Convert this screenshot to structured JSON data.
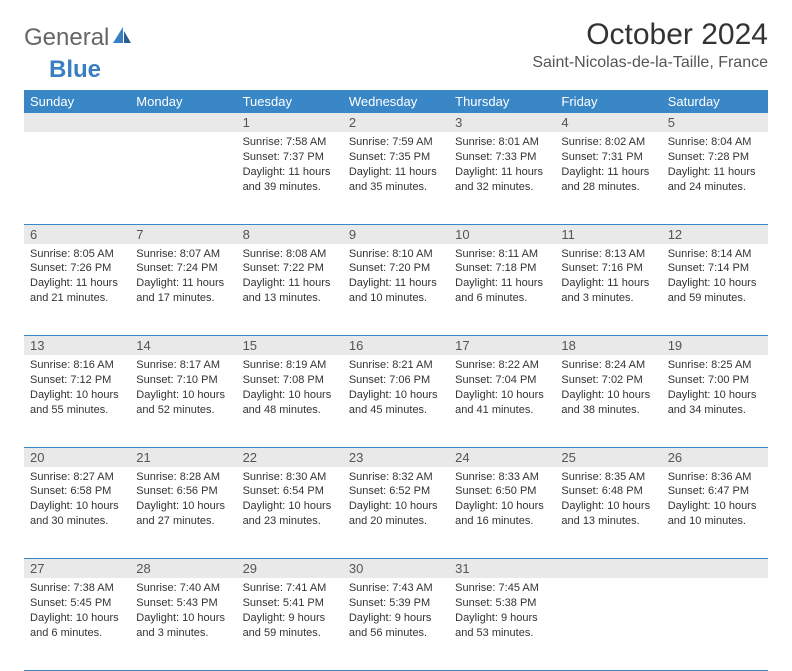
{
  "header": {
    "logo_part1": "General",
    "logo_part2": "Blue",
    "month_title": "October 2024",
    "location": "Saint-Nicolas-de-la-Taille, France"
  },
  "styling": {
    "header_bg": "#3a87c7",
    "header_fg": "#ffffff",
    "daynum_bg": "#e9e9e9",
    "row_divider": "#3a87c7",
    "text_color": "#333333",
    "details_fontsize": 11,
    "header_fontsize": 13,
    "title_fontsize": 30,
    "location_fontsize": 16
  },
  "day_labels": [
    "Sunday",
    "Monday",
    "Tuesday",
    "Wednesday",
    "Thursday",
    "Friday",
    "Saturday"
  ],
  "weeks": [
    [
      null,
      null,
      {
        "n": "1",
        "sunrise": "7:58 AM",
        "sunset": "7:37 PM",
        "daylight": "11 hours and 39 minutes."
      },
      {
        "n": "2",
        "sunrise": "7:59 AM",
        "sunset": "7:35 PM",
        "daylight": "11 hours and 35 minutes."
      },
      {
        "n": "3",
        "sunrise": "8:01 AM",
        "sunset": "7:33 PM",
        "daylight": "11 hours and 32 minutes."
      },
      {
        "n": "4",
        "sunrise": "8:02 AM",
        "sunset": "7:31 PM",
        "daylight": "11 hours and 28 minutes."
      },
      {
        "n": "5",
        "sunrise": "8:04 AM",
        "sunset": "7:28 PM",
        "daylight": "11 hours and 24 minutes."
      }
    ],
    [
      {
        "n": "6",
        "sunrise": "8:05 AM",
        "sunset": "7:26 PM",
        "daylight": "11 hours and 21 minutes."
      },
      {
        "n": "7",
        "sunrise": "8:07 AM",
        "sunset": "7:24 PM",
        "daylight": "11 hours and 17 minutes."
      },
      {
        "n": "8",
        "sunrise": "8:08 AM",
        "sunset": "7:22 PM",
        "daylight": "11 hours and 13 minutes."
      },
      {
        "n": "9",
        "sunrise": "8:10 AM",
        "sunset": "7:20 PM",
        "daylight": "11 hours and 10 minutes."
      },
      {
        "n": "10",
        "sunrise": "8:11 AM",
        "sunset": "7:18 PM",
        "daylight": "11 hours and 6 minutes."
      },
      {
        "n": "11",
        "sunrise": "8:13 AM",
        "sunset": "7:16 PM",
        "daylight": "11 hours and 3 minutes."
      },
      {
        "n": "12",
        "sunrise": "8:14 AM",
        "sunset": "7:14 PM",
        "daylight": "10 hours and 59 minutes."
      }
    ],
    [
      {
        "n": "13",
        "sunrise": "8:16 AM",
        "sunset": "7:12 PM",
        "daylight": "10 hours and 55 minutes."
      },
      {
        "n": "14",
        "sunrise": "8:17 AM",
        "sunset": "7:10 PM",
        "daylight": "10 hours and 52 minutes."
      },
      {
        "n": "15",
        "sunrise": "8:19 AM",
        "sunset": "7:08 PM",
        "daylight": "10 hours and 48 minutes."
      },
      {
        "n": "16",
        "sunrise": "8:21 AM",
        "sunset": "7:06 PM",
        "daylight": "10 hours and 45 minutes."
      },
      {
        "n": "17",
        "sunrise": "8:22 AM",
        "sunset": "7:04 PM",
        "daylight": "10 hours and 41 minutes."
      },
      {
        "n": "18",
        "sunrise": "8:24 AM",
        "sunset": "7:02 PM",
        "daylight": "10 hours and 38 minutes."
      },
      {
        "n": "19",
        "sunrise": "8:25 AM",
        "sunset": "7:00 PM",
        "daylight": "10 hours and 34 minutes."
      }
    ],
    [
      {
        "n": "20",
        "sunrise": "8:27 AM",
        "sunset": "6:58 PM",
        "daylight": "10 hours and 30 minutes."
      },
      {
        "n": "21",
        "sunrise": "8:28 AM",
        "sunset": "6:56 PM",
        "daylight": "10 hours and 27 minutes."
      },
      {
        "n": "22",
        "sunrise": "8:30 AM",
        "sunset": "6:54 PM",
        "daylight": "10 hours and 23 minutes."
      },
      {
        "n": "23",
        "sunrise": "8:32 AM",
        "sunset": "6:52 PM",
        "daylight": "10 hours and 20 minutes."
      },
      {
        "n": "24",
        "sunrise": "8:33 AM",
        "sunset": "6:50 PM",
        "daylight": "10 hours and 16 minutes."
      },
      {
        "n": "25",
        "sunrise": "8:35 AM",
        "sunset": "6:48 PM",
        "daylight": "10 hours and 13 minutes."
      },
      {
        "n": "26",
        "sunrise": "8:36 AM",
        "sunset": "6:47 PM",
        "daylight": "10 hours and 10 minutes."
      }
    ],
    [
      {
        "n": "27",
        "sunrise": "7:38 AM",
        "sunset": "5:45 PM",
        "daylight": "10 hours and 6 minutes."
      },
      {
        "n": "28",
        "sunrise": "7:40 AM",
        "sunset": "5:43 PM",
        "daylight": "10 hours and 3 minutes."
      },
      {
        "n": "29",
        "sunrise": "7:41 AM",
        "sunset": "5:41 PM",
        "daylight": "9 hours and 59 minutes."
      },
      {
        "n": "30",
        "sunrise": "7:43 AM",
        "sunset": "5:39 PM",
        "daylight": "9 hours and 56 minutes."
      },
      {
        "n": "31",
        "sunrise": "7:45 AM",
        "sunset": "5:38 PM",
        "daylight": "9 hours and 53 minutes."
      },
      null,
      null
    ]
  ],
  "labels": {
    "sunrise_prefix": "Sunrise: ",
    "sunset_prefix": "Sunset: ",
    "daylight_prefix": "Daylight: "
  }
}
